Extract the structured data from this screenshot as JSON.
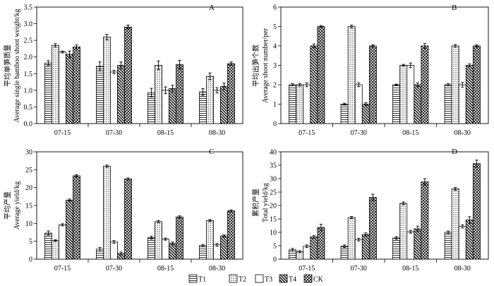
{
  "legend": [
    {
      "label": "T1",
      "pattern": "hlines"
    },
    {
      "label": "T2",
      "pattern": "dots"
    },
    {
      "label": "T3",
      "pattern": "blank"
    },
    {
      "label": "T4",
      "pattern": "diag"
    },
    {
      "label": "CK",
      "pattern": "cross"
    }
  ],
  "chart_data": [
    {
      "panel": "A",
      "type": "bar",
      "ylabel_cn": "平均单笋质量",
      "ylabel_en": "Average single bamboo shoot weight/kg",
      "categories": [
        "07-15",
        "07-30",
        "08-15",
        "08-30"
      ],
      "ylim": [
        0,
        3.5
      ],
      "yticks": [
        0,
        0.5,
        1.0,
        1.5,
        2.0,
        2.5,
        3.0,
        3.5
      ],
      "decimals": 1,
      "series": [
        {
          "name": "T1",
          "values": [
            1.82,
            1.72,
            0.93,
            0.95
          ],
          "errors": [
            0.07,
            0.13,
            0.13,
            0.1
          ]
        },
        {
          "name": "T2",
          "values": [
            2.35,
            2.6,
            1.75,
            1.42
          ],
          "errors": [
            0.05,
            0.08,
            0.13,
            0.1
          ]
        },
        {
          "name": "T3",
          "values": [
            2.15,
            1.55,
            1.0,
            1.0
          ],
          "errors": [
            0.03,
            0.05,
            0.1,
            0.08
          ]
        },
        {
          "name": "T4",
          "values": [
            2.08,
            1.75,
            1.05,
            1.12
          ],
          "errors": [
            0.1,
            0.1,
            0.1,
            0.1
          ]
        },
        {
          "name": "CK",
          "values": [
            2.3,
            2.9,
            1.77,
            1.8
          ],
          "errors": [
            0.06,
            0.06,
            0.13,
            0.05
          ]
        }
      ]
    },
    {
      "panel": "B",
      "type": "bar",
      "ylabel_cn": "平均出笋个数",
      "ylabel_en": "Average shoot number/per",
      "categories": [
        "07-15",
        "07-30",
        "08-15",
        "08-30"
      ],
      "ylim": [
        0,
        6
      ],
      "yticks": [
        0,
        1,
        2,
        3,
        4,
        5,
        6
      ],
      "decimals": 0,
      "series": [
        {
          "name": "T1",
          "values": [
            2.0,
            1.0,
            2.0,
            2.0
          ],
          "errors": [
            0.05,
            0.05,
            0.03,
            0.05
          ]
        },
        {
          "name": "T2",
          "values": [
            2.0,
            5.0,
            3.0,
            4.0
          ],
          "errors": [
            0.07,
            0.07,
            0.05,
            0.07
          ]
        },
        {
          "name": "T3",
          "values": [
            2.0,
            2.0,
            3.0,
            2.0
          ],
          "errors": [
            0.1,
            0.1,
            0.12,
            0.12
          ]
        },
        {
          "name": "T4",
          "values": [
            4.0,
            1.0,
            2.0,
            3.0
          ],
          "errors": [
            0.1,
            0.07,
            0.1,
            0.07
          ]
        },
        {
          "name": "CK",
          "values": [
            5.0,
            4.0,
            4.0,
            4.0
          ],
          "errors": [
            0.05,
            0.05,
            0.12,
            0.05
          ]
        }
      ]
    },
    {
      "panel": "C",
      "type": "bar",
      "ylabel_cn": "平均产量",
      "ylabel_en": "Average yield/kg",
      "categories": [
        "07-15",
        "07-30",
        "08-15",
        "08-30"
      ],
      "ylim": [
        0,
        30
      ],
      "yticks": [
        0,
        5,
        10,
        15,
        20,
        25,
        30
      ],
      "decimals": 0,
      "series": [
        {
          "name": "T1",
          "values": [
            7.3,
            2.8,
            6.0,
            3.8
          ],
          "errors": [
            0.6,
            0.5,
            0.4,
            0.3
          ]
        },
        {
          "name": "T2",
          "values": [
            5.2,
            26.0,
            10.5,
            10.8
          ],
          "errors": [
            0.2,
            0.3,
            0.3,
            0.3
          ]
        },
        {
          "name": "T3",
          "values": [
            9.6,
            4.8,
            5.6,
            4.0
          ],
          "errors": [
            0.3,
            0.4,
            0.3,
            0.4
          ]
        },
        {
          "name": "T4",
          "values": [
            16.5,
            1.6,
            4.4,
            6.5
          ],
          "errors": [
            0.3,
            0.4,
            0.4,
            0.3
          ]
        },
        {
          "name": "CK",
          "values": [
            23.3,
            22.4,
            11.8,
            13.5
          ],
          "errors": [
            0.3,
            0.3,
            0.3,
            0.3
          ]
        }
      ]
    },
    {
      "panel": "D",
      "type": "bar",
      "ylabel_cn": "累积产量",
      "ylabel_en": "Total yield/kg",
      "categories": [
        "07-15",
        "07-30",
        "08-15",
        "08-30"
      ],
      "ylim": [
        0,
        40
      ],
      "yticks": [
        0,
        5,
        10,
        15,
        20,
        25,
        30,
        35,
        40
      ],
      "decimals": 0,
      "series": [
        {
          "name": "T1",
          "values": [
            3.5,
            4.8,
            7.9,
            10.0
          ],
          "errors": [
            0.5,
            0.5,
            0.5,
            0.5
          ]
        },
        {
          "name": "T2",
          "values": [
            2.8,
            15.5,
            20.8,
            26.2
          ],
          "errors": [
            0.4,
            0.4,
            0.5,
            0.5
          ]
        },
        {
          "name": "T3",
          "values": [
            4.8,
            7.3,
            10.2,
            12.2
          ],
          "errors": [
            0.5,
            0.5,
            0.5,
            0.6
          ]
        },
        {
          "name": "T4",
          "values": [
            8.3,
            9.2,
            11.3,
            14.6
          ],
          "errors": [
            0.5,
            0.6,
            1.0,
            1.2
          ]
        },
        {
          "name": "CK",
          "values": [
            11.8,
            23.0,
            28.8,
            35.6
          ],
          "errors": [
            1.2,
            1.2,
            1.2,
            1.3
          ]
        }
      ]
    }
  ]
}
